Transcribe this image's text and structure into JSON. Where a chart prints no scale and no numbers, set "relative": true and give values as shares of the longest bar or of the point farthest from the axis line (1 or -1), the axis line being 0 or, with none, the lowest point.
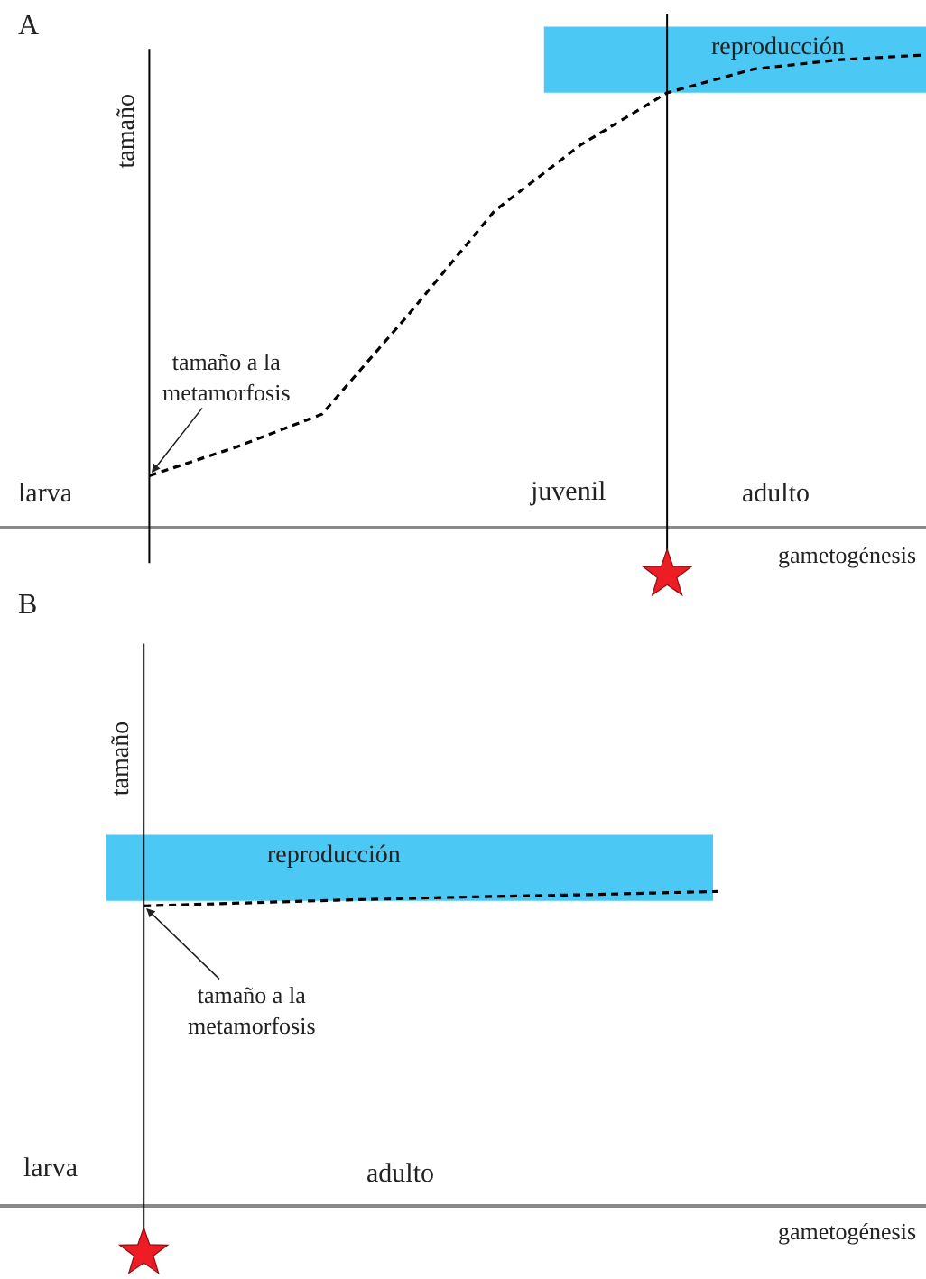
{
  "chart_data": [
    {
      "type": "line",
      "title": "A",
      "ylabel": "tamaño",
      "xlabel": "gametogénesis",
      "relative": true,
      "categories": [
        null,
        null,
        null,
        null,
        null,
        null,
        null,
        null,
        null,
        null
      ],
      "series": [
        {
          "color": "#000000",
          "line_style": "dashed",
          "values": [
            0.11,
            0.17,
            0.24,
            0.45,
            0.67,
            0.81,
            0.92,
            0.97,
            0.99,
            1
          ]
        }
      ],
      "bands": [
        {
          "axis": "y",
          "from": 0.92,
          "to": 1.06,
          "label": "reproducción",
          "color": "#00b0f0"
        }
      ],
      "annotations": [
        "tamaño a la\nmetamorfosis",
        "larva",
        "juvenil",
        "adulto"
      ]
    },
    {
      "type": "line",
      "title": "B",
      "ylabel": "tamaño",
      "xlabel": "gametogénesis",
      "relative": true,
      "categories": [
        null,
        null,
        null,
        null,
        null,
        null,
        null,
        null,
        null,
        null
      ],
      "series": [
        {
          "color": "#000000",
          "line_style": "dashed",
          "values": [
            0.954,
            0.96,
            0.966,
            0.972,
            0.977,
            0.982,
            0.986,
            0.99,
            0.995,
            1
          ]
        }
      ],
      "bands": [
        {
          "axis": "y",
          "from": 0.97,
          "to": 1.18,
          "label": "reproducción",
          "color": "#00b0f0"
        }
      ],
      "annotations": [
        "tamaño a la\nmetamorfosis",
        "larva",
        "adulto"
      ]
    }
  ]
}
